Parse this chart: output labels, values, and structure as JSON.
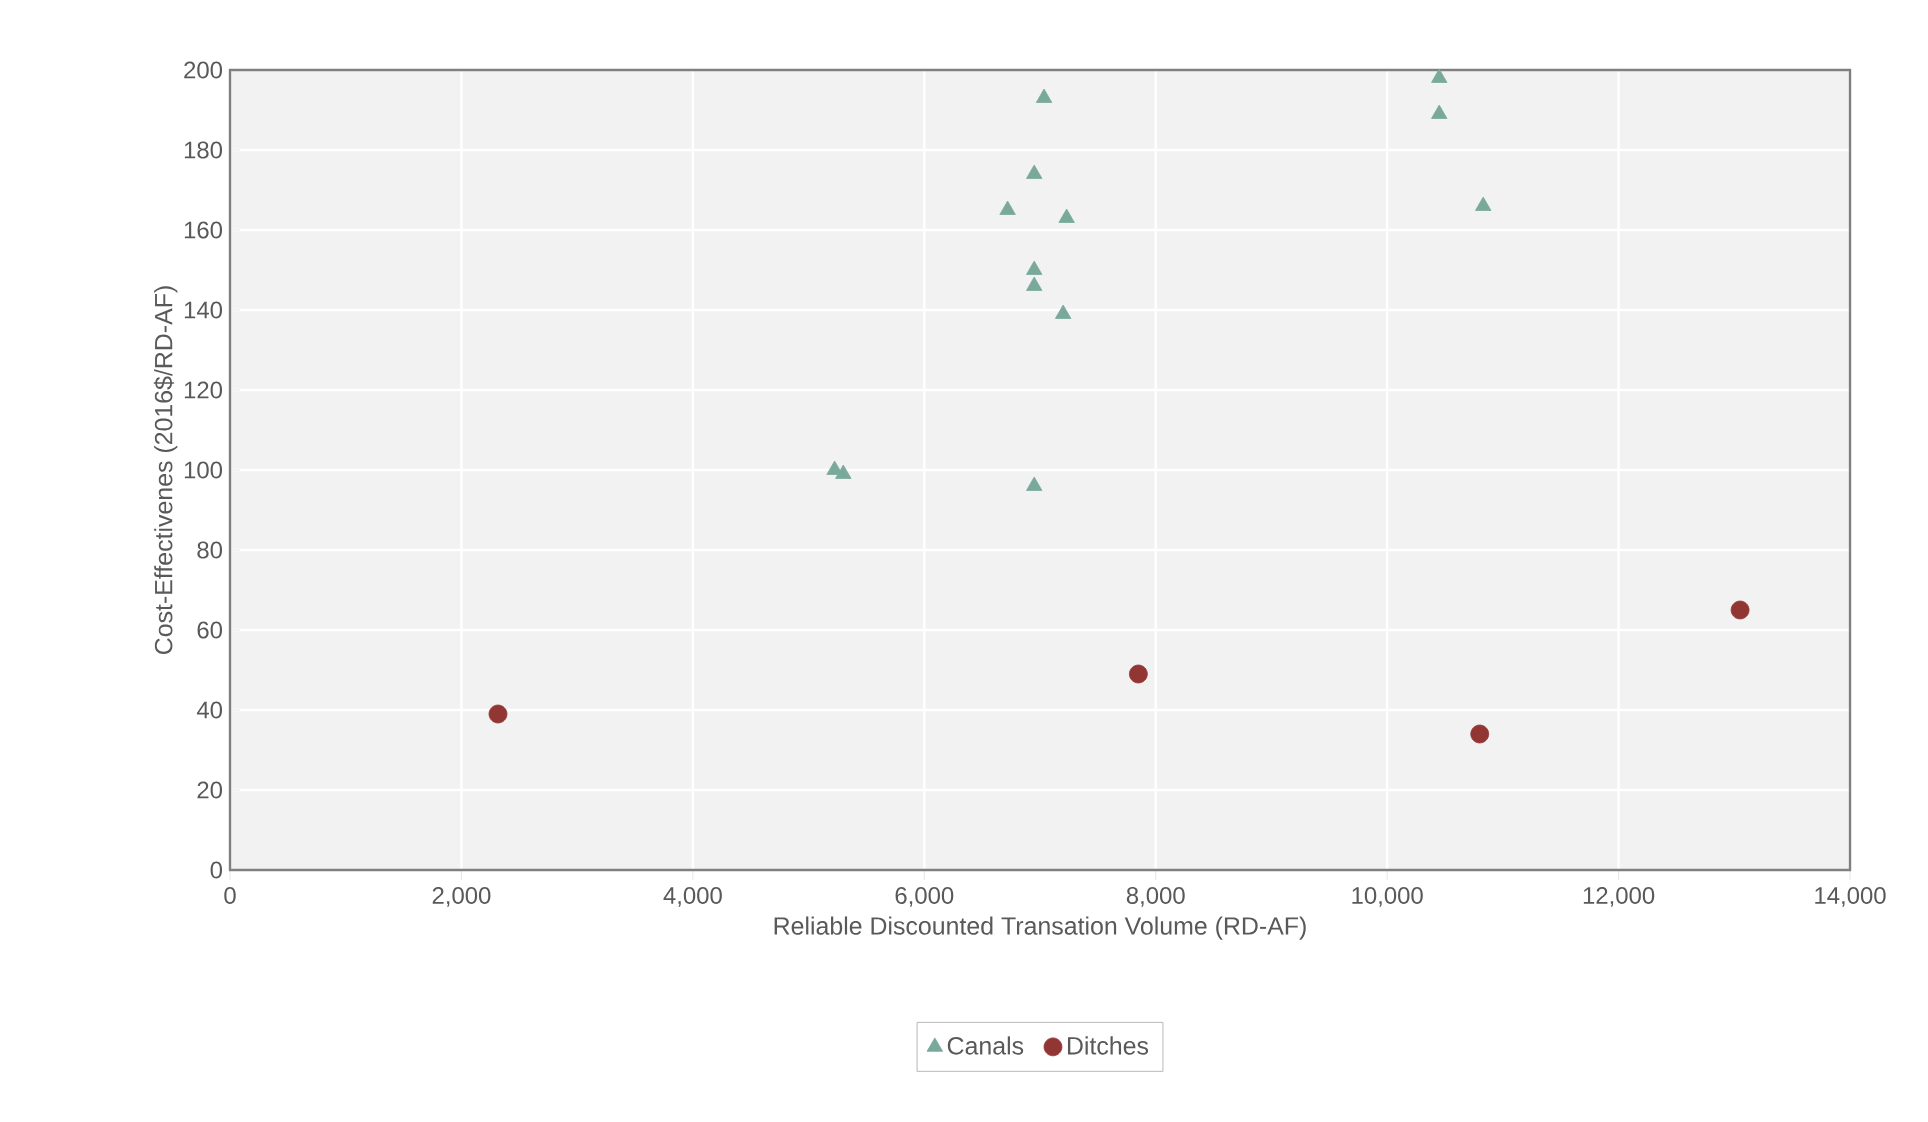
{
  "chart_data": {
    "type": "scatter",
    "xlabel": "Reliable Discounted Transation Volume (RD-AF)",
    "ylabel": "Cost-Effectivenes (2016$/RD-AF)",
    "xlim": [
      0,
      14000
    ],
    "ylim": [
      0,
      200
    ],
    "xticks": [
      {
        "value": 0,
        "label": "0"
      },
      {
        "value": 2000,
        "label": "2,000"
      },
      {
        "value": 4000,
        "label": "4,000"
      },
      {
        "value": 6000,
        "label": "6,000"
      },
      {
        "value": 8000,
        "label": "8,000"
      },
      {
        "value": 10000,
        "label": "10,000"
      },
      {
        "value": 12000,
        "label": "12,000"
      },
      {
        "value": 14000,
        "label": "14,000"
      }
    ],
    "yticks": [
      0,
      20,
      40,
      60,
      80,
      100,
      120,
      140,
      160,
      180,
      200
    ],
    "grid": true,
    "legend": "bottom",
    "series": [
      {
        "name": "Canals",
        "color": "#78a99b",
        "marker": "triangle",
        "x": [
          7035,
          6950,
          6720,
          7230,
          6950,
          6950,
          7200,
          5225,
          5300,
          6950,
          10450,
          10450,
          10830
        ],
        "values": [
          193,
          174,
          165,
          163,
          150,
          146,
          139,
          100,
          99,
          96,
          198,
          189,
          166
        ]
      },
      {
        "name": "Ditches",
        "color": "#923634",
        "marker": "circle",
        "x": [
          2316,
          7850,
          10800,
          13050
        ],
        "values": [
          39,
          49,
          34,
          65
        ]
      }
    ]
  }
}
